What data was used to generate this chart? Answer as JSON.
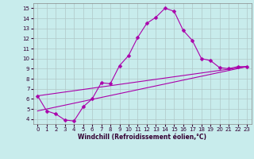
{
  "title": "",
  "xlabel": "Windchill (Refroidissement éolien,°C)",
  "bg_color": "#c8ecec",
  "line_color": "#aa00aa",
  "grid_color": "#b0c8c8",
  "x_ticks": [
    0,
    1,
    2,
    3,
    4,
    5,
    6,
    7,
    8,
    9,
    10,
    11,
    12,
    13,
    14,
    15,
    16,
    17,
    18,
    19,
    20,
    21,
    22,
    23
  ],
  "y_ticks": [
    4,
    5,
    6,
    7,
    8,
    9,
    10,
    11,
    12,
    13,
    14,
    15
  ],
  "ylim": [
    3.5,
    15.5
  ],
  "xlim": [
    -0.5,
    23.5
  ],
  "line1_x": [
    0,
    1,
    2,
    3,
    4,
    5,
    6,
    7,
    8,
    9,
    10,
    11,
    12,
    13,
    14,
    15,
    16,
    17,
    18,
    19,
    20,
    21,
    22,
    23
  ],
  "line1_y": [
    6.3,
    4.8,
    4.5,
    3.9,
    3.8,
    5.2,
    6.0,
    7.6,
    7.5,
    9.3,
    10.3,
    12.1,
    13.5,
    14.1,
    15.0,
    14.7,
    12.8,
    11.8,
    10.0,
    9.8,
    9.1,
    9.0,
    9.2,
    9.2
  ],
  "line2_x": [
    0,
    23
  ],
  "line2_y": [
    6.3,
    9.2
  ],
  "line3_x": [
    0,
    23
  ],
  "line3_y": [
    4.8,
    9.2
  ],
  "marker": "D",
  "markersize": 2.5,
  "linewidth": 0.8,
  "tick_fontsize": 5.0,
  "label_fontsize": 5.5
}
